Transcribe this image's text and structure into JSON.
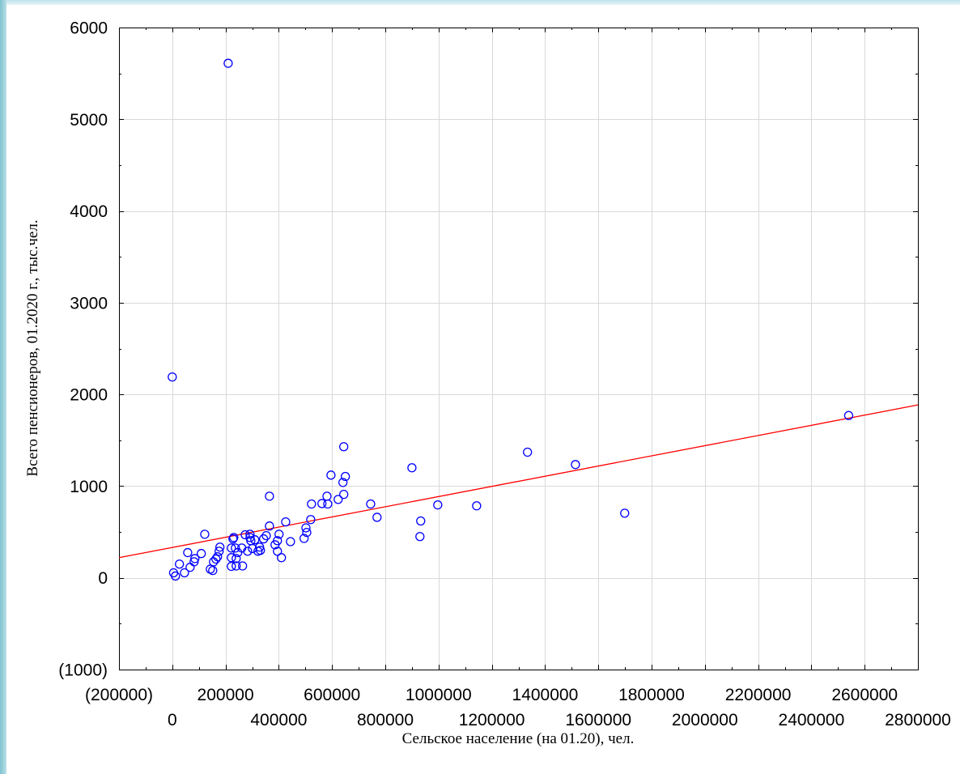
{
  "chart_data": {
    "type": "scatter",
    "xlabel": "Сельское население (на 01.20), чел.",
    "ylabel": "Всего пенсионеров, 01.2020 г., тыс.чел.",
    "xlim": [
      -200000,
      2800000
    ],
    "ylim": [
      -1000,
      6000
    ],
    "x_ticks": [
      -200000,
      0,
      200000,
      400000,
      600000,
      800000,
      1000000,
      1200000,
      1400000,
      1600000,
      1800000,
      2000000,
      2200000,
      2400000,
      2600000,
      2800000
    ],
    "x_tick_labels": [
      "(200000)",
      "0",
      "200000",
      "400000",
      "600000",
      "800000",
      "1000000",
      "1200000",
      "1400000",
      "1600000",
      "1800000",
      "2000000",
      "2200000",
      "2400000",
      "2600000",
      "2800000"
    ],
    "y_ticks": [
      -1000,
      0,
      1000,
      2000,
      3000,
      4000,
      5000,
      6000
    ],
    "y_tick_labels": [
      "(1000)",
      "0",
      "1000",
      "2000",
      "3000",
      "4000",
      "5000",
      "6000"
    ],
    "grid": true,
    "marker_color": "#0000ff",
    "line_color": "#ff0000",
    "grid_color": "#d9d9d9",
    "series": [
      {
        "x": [
          210000,
          0,
          2540000,
          1334000,
          1514000,
          1699000,
          1143000,
          997000,
          900000,
          933000,
          930000,
          769000,
          745000,
          644000,
          650000,
          596000,
          641000,
          644000,
          623000,
          581000,
          562000,
          584000,
          523000,
          520000,
          505000,
          502000,
          495000,
          426000,
          444000,
          365000,
          365000,
          401000,
          395000,
          386000,
          395000,
          410000,
          353000,
          343000,
          331000,
          322000,
          328000,
          310000,
          295000,
          301000,
          292000,
          292000,
          274000,
          283000,
          261000,
          264000,
          240000,
          246000,
          240000,
          237000,
          231000,
          228000,
          222000,
          222000,
          222000,
          176000,
          179000,
          170000,
          164000,
          155000,
          143000,
          152000,
          122000,
          109000,
          82000,
          85000,
          58000,
          67000,
          46000,
          27000,
          5000,
          12000
        ],
        "y": [
          5610,
          2190,
          1770,
          1370,
          1235,
          705,
          785,
          795,
          1200,
          620,
          450,
          660,
          805,
          1430,
          1105,
          1120,
          1040,
          910,
          855,
          890,
          810,
          805,
          805,
          635,
          495,
          545,
          430,
          610,
          395,
          890,
          565,
          475,
          405,
          360,
          290,
          220,
          460,
          425,
          300,
          290,
          335,
          415,
          405,
          320,
          475,
          440,
          470,
          290,
          325,
          130,
          210,
          275,
          130,
          325,
          440,
          425,
          325,
          220,
          125,
          290,
          335,
          230,
          205,
          175,
          95,
          80,
          475,
          265,
          175,
          210,
          275,
          115,
          55,
          150,
          55,
          20
        ]
      }
    ],
    "fit_line": {
      "type": "line",
      "x": [
        -200000,
        2800000
      ],
      "y": [
        220,
        1885
      ]
    }
  }
}
